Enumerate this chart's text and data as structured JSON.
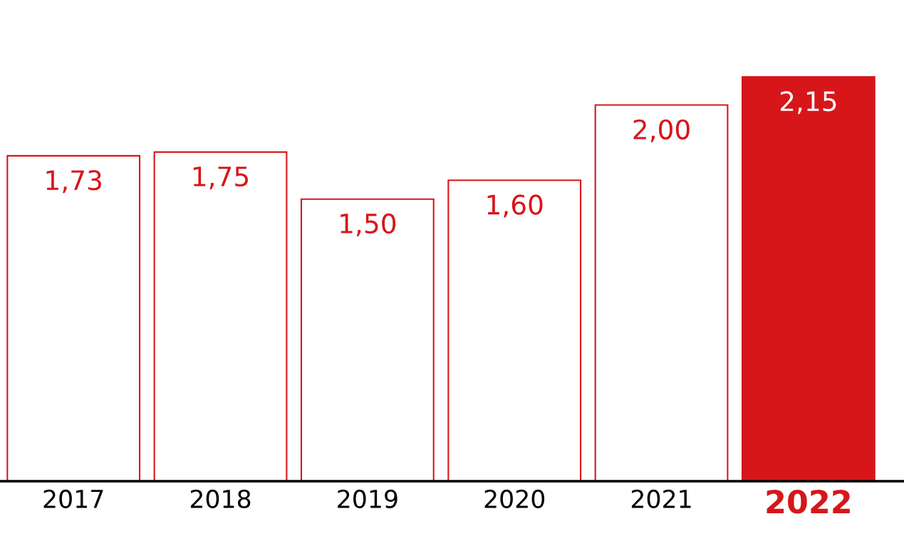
{
  "chart_data": {
    "type": "bar",
    "categories": [
      "2017",
      "2018",
      "2019",
      "2020",
      "2021",
      "2022"
    ],
    "values": [
      1.73,
      1.75,
      1.5,
      1.6,
      2.0,
      2.15
    ],
    "value_labels": [
      "1,73",
      "1,75",
      "1,50",
      "1,60",
      "2,00",
      "2,15"
    ],
    "colors": [
      "#ffffff",
      "#ffffff",
      "#ffffff",
      "#ffffff",
      "#ffffff",
      "#d7161a"
    ],
    "tick_labels": "x",
    "grid": false,
    "legend": false
  }
}
